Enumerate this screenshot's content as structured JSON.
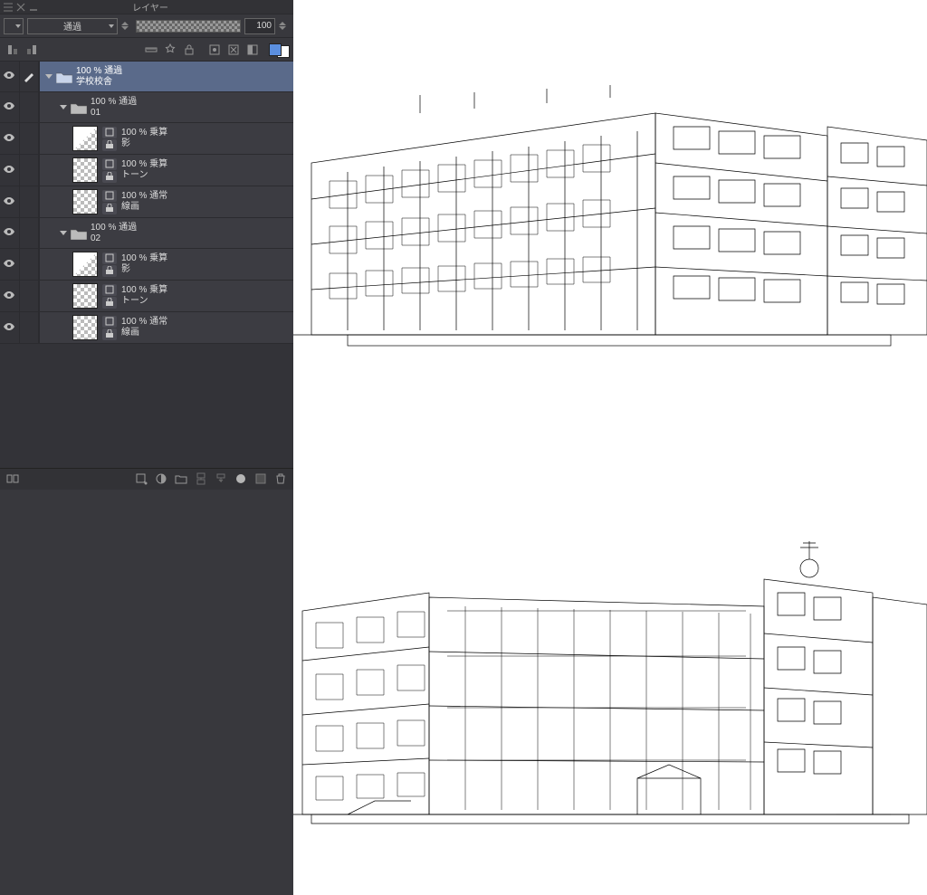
{
  "panel": {
    "title": "レイヤー"
  },
  "blend": {
    "mode": "通過",
    "opacity": "100"
  },
  "colors": {
    "panel_bg": "#38383d",
    "sel_bg": "#5a6a8a",
    "fg": "#5b8fe0",
    "bg": "#ffffff"
  },
  "layers": [
    {
      "id": "g-root",
      "depth": 0,
      "type": "folder",
      "expanded": true,
      "selected": true,
      "line1": "100 % 通過",
      "line2": "学校校舎"
    },
    {
      "id": "g-01",
      "depth": 1,
      "type": "folder",
      "expanded": true,
      "line1": "100 % 通過",
      "line2": "01"
    },
    {
      "id": "l-01a",
      "depth": 2,
      "type": "raster",
      "thumb": "half",
      "line1": "100 % 乗算",
      "line2": "影"
    },
    {
      "id": "l-01b",
      "depth": 2,
      "type": "raster",
      "thumb": "checker",
      "line1": "100 % 乗算",
      "line2": "トーン"
    },
    {
      "id": "l-01c",
      "depth": 2,
      "type": "raster",
      "thumb": "checker",
      "line1": "100 % 通常",
      "line2": "線画"
    },
    {
      "id": "g-02",
      "depth": 1,
      "type": "folder",
      "expanded": true,
      "line1": "100 % 通過",
      "line2": "02"
    },
    {
      "id": "l-02a",
      "depth": 2,
      "type": "raster",
      "thumb": "half",
      "line1": "100 % 乗算",
      "line2": "影"
    },
    {
      "id": "l-02b",
      "depth": 2,
      "type": "raster",
      "thumb": "checker",
      "line1": "100 % 乗算",
      "line2": "トーン"
    },
    {
      "id": "l-02c",
      "depth": 2,
      "type": "raster",
      "thumb": "checker",
      "line1": "100 % 通常",
      "line2": "線画"
    }
  ],
  "bottom_icons": [
    "new-layer",
    "new-folder",
    "new-folder2",
    "transfer",
    "merge",
    "mask",
    "delete",
    "menu"
  ],
  "icon_row": [
    "clip-l",
    "clip-r",
    "sep",
    "ruler",
    "fx",
    "lock",
    "sep",
    "ref",
    "draft",
    "mask2",
    "sep",
    "color"
  ]
}
